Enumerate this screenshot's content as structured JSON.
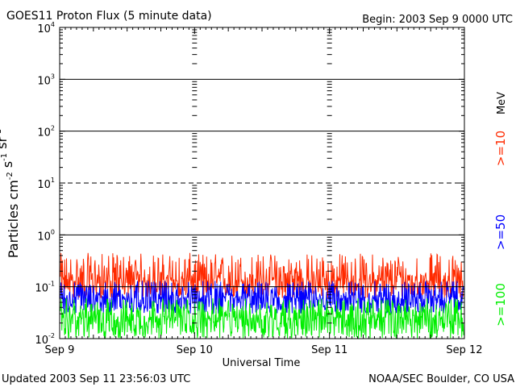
{
  "header": {
    "title": "GOES11 Proton Flux (5 minute data)",
    "begin": "Begin: 2003 Sep 9 0000 UTC"
  },
  "footer": {
    "updated": "Updated 2003 Sep 11 23:56:03 UTC",
    "source": "NOAA/SEC Boulder, CO USA"
  },
  "colors": {
    "ge10": "#ff2a00",
    "ge50": "#0000ff",
    "ge100": "#00ee00",
    "axis": "#000000"
  },
  "chart_data": {
    "type": "line",
    "title": "GOES11 Proton Flux (5 minute data)",
    "xlabel": "Universal Time",
    "ylabel": "Particles cm^-2 s^-1 sr^-1",
    "y_scale": "log",
    "ylim": [
      0.01,
      10000
    ],
    "y_ticks": [
      0.01,
      0.1,
      1,
      10,
      100,
      1000,
      10000
    ],
    "y_tick_labels": [
      {
        "base": "10",
        "exp": "-2"
      },
      {
        "base": "10",
        "exp": "-1"
      },
      {
        "base": "10",
        "exp": "0"
      },
      {
        "base": "10",
        "exp": "1"
      },
      {
        "base": "10",
        "exp": "2"
      },
      {
        "base": "10",
        "exp": "3"
      },
      {
        "base": "10",
        "exp": "4"
      }
    ],
    "x_ticks": [
      "Sep 9",
      "Sep 10",
      "Sep 11",
      "Sep 12"
    ],
    "xlim": [
      "2003-09-09 00:00",
      "2003-09-12 00:00"
    ],
    "data_end": "2003-09-11 23:55",
    "threshold_lines": [
      {
        "y": 1000,
        "style": "solid"
      },
      {
        "y": 100,
        "style": "solid"
      },
      {
        "y": 10,
        "style": "dashed"
      },
      {
        "y": 1,
        "style": "solid"
      },
      {
        "y": 0.1,
        "style": "solid"
      }
    ],
    "legend_placement": "right, vertical",
    "series": [
      {
        "name": ">=10",
        "unit": "MeV",
        "color": "#ff2a00",
        "typical_range": [
          0.06,
          0.45
        ],
        "median": 0.13
      },
      {
        "name": ">=50",
        "color": "#0000ff",
        "typical_range": [
          0.03,
          0.13
        ],
        "median": 0.06
      },
      {
        "name": ">=100",
        "color": "#00ee00",
        "typical_range": [
          0.01,
          0.06
        ],
        "median": 0.025
      }
    ]
  }
}
